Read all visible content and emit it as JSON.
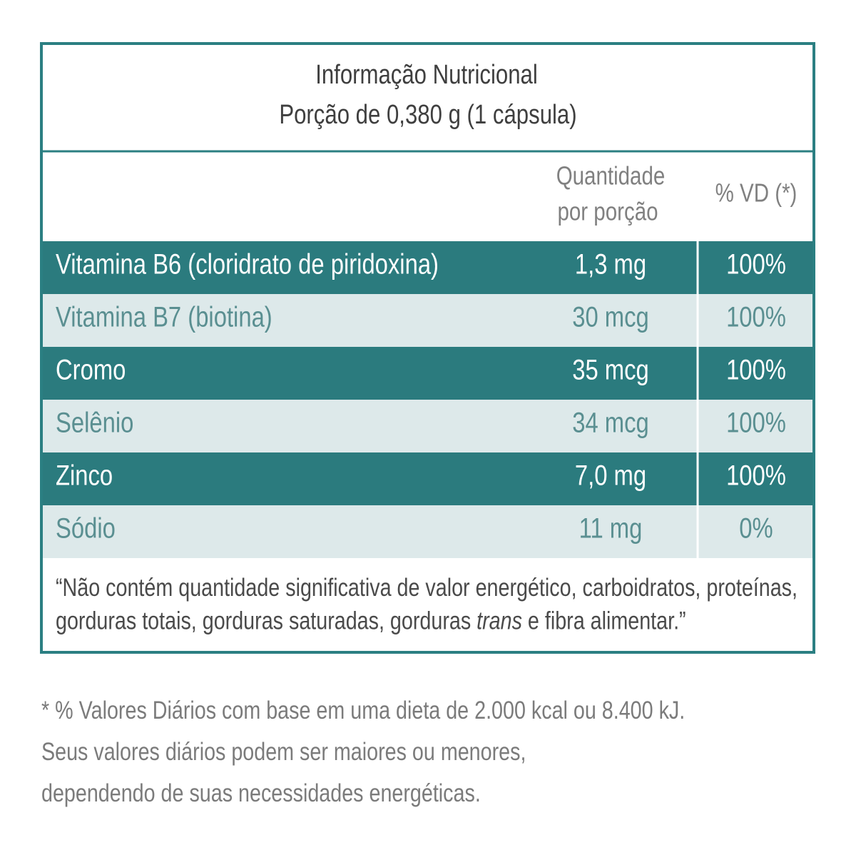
{
  "header": {
    "title": "Informação Nutricional",
    "portion": "Porção de 0,380 g (1 cápsula)"
  },
  "columns": {
    "amount": "Quantidade por porção",
    "amount_line1": "Quantidade",
    "amount_line2": "por porção",
    "vd": "% VD (*)"
  },
  "table": {
    "rows": [
      [
        "Vitamina B6 (cloridrato de piridoxina)",
        "1,3 mg",
        "100%"
      ],
      [
        "Vitamina B7 (biotina)",
        "30 mcg",
        "100%"
      ],
      [
        "Cromo",
        "35 mcg",
        "100%"
      ],
      [
        "Selênio",
        "34 mcg",
        "100%"
      ],
      [
        "Zinco",
        "7,0 mg",
        "100%"
      ],
      [
        "Sódio",
        "11 mg",
        "0%"
      ]
    ]
  },
  "note": {
    "line1": "“Não contém quantidade significativa de valor energético, carboidratos, proteínas,",
    "line2_start": "gorduras totais, gorduras saturadas, gorduras",
    "line2_italic": "trans",
    "line2_end": "e fibra alimentar.”"
  },
  "footnote": {
    "lines": [
      "* % Valores Diários com base em uma dieta de 2.000 kcal ou 8.400 kJ.",
      "Seus valores diários podem ser maiores ou menores,",
      "dependendo de suas necessidades energéticas."
    ]
  }
}
